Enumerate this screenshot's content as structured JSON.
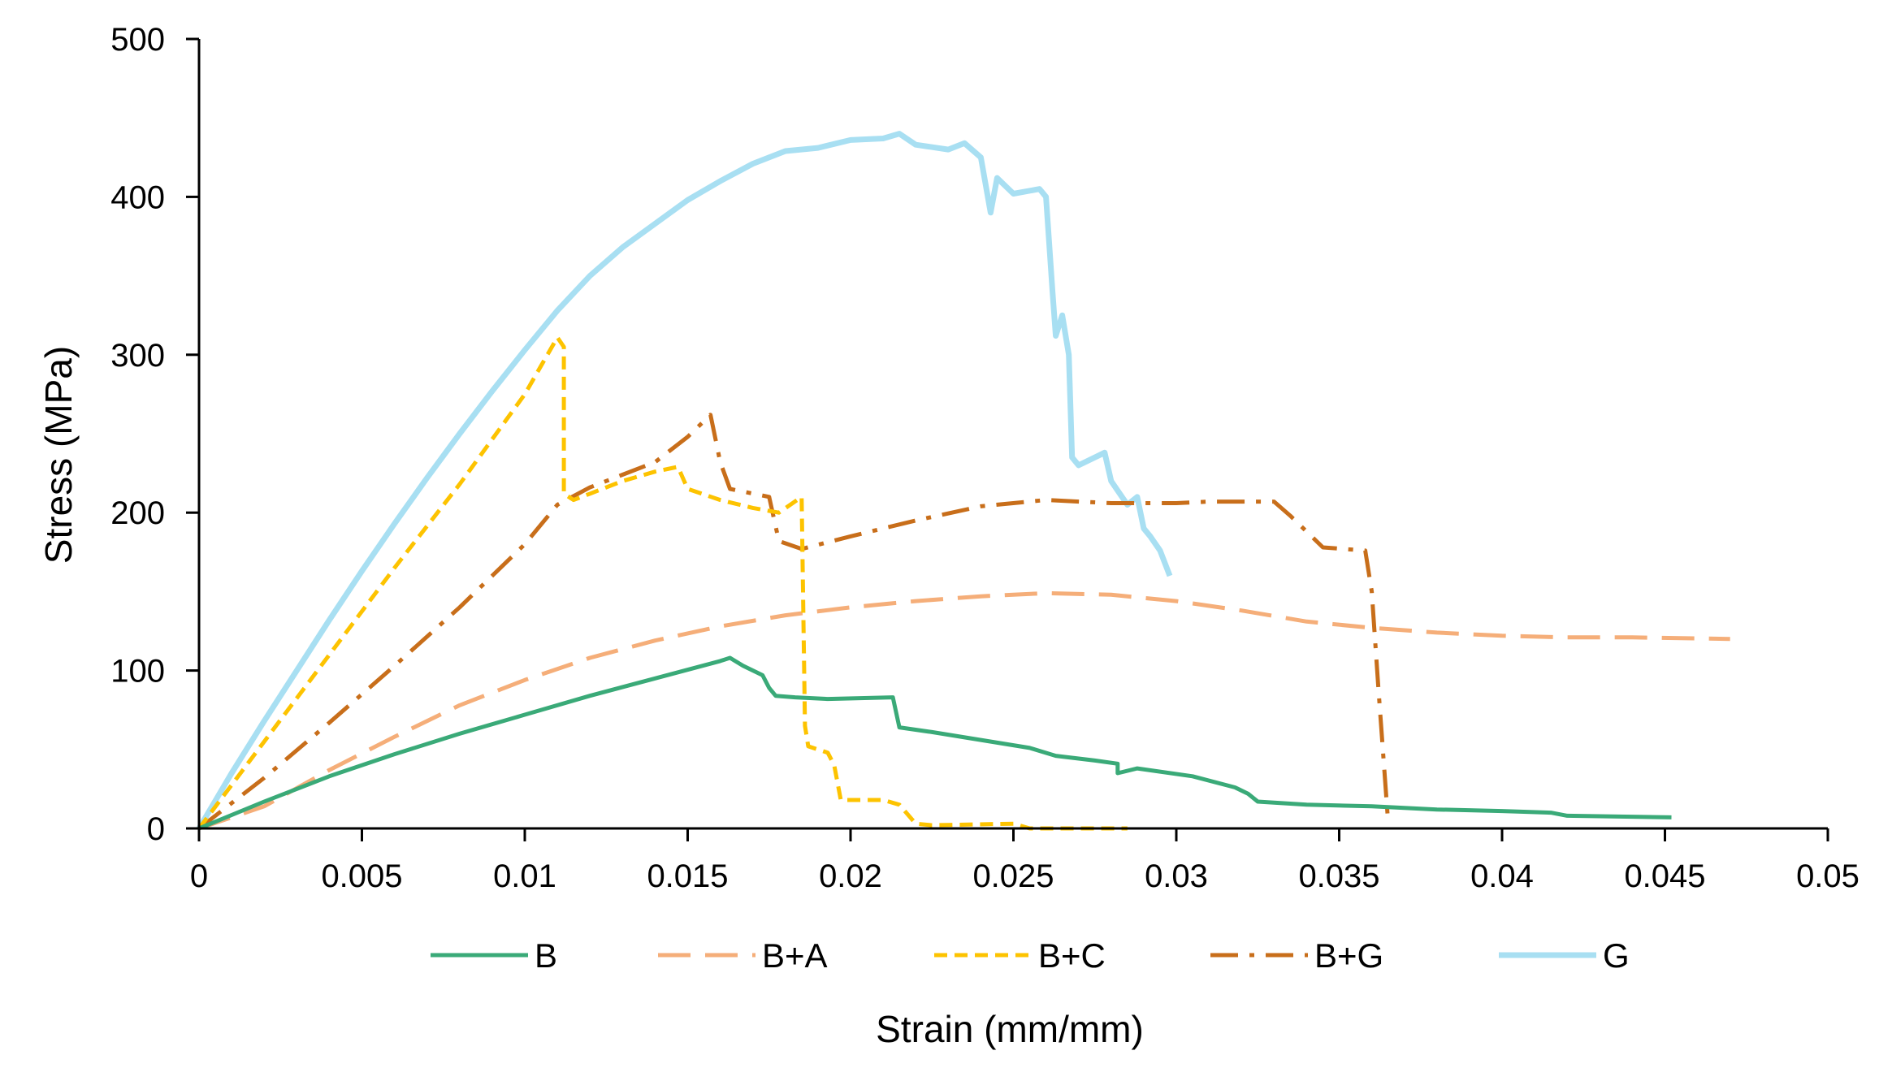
{
  "chart_data": {
    "type": "line",
    "title": "",
    "xlabel": "Strain (mm/mm)",
    "ylabel": "Stress (MPa)",
    "xlim": [
      0,
      0.05
    ],
    "ylim": [
      0,
      500
    ],
    "xticks": [
      0,
      0.005,
      0.01,
      0.015,
      0.02,
      0.025,
      0.03,
      0.035,
      0.04,
      0.045,
      0.05
    ],
    "xtick_labels": [
      "0",
      "0.005",
      "0.01",
      "0.015",
      "0.02",
      "0.025",
      "0.03",
      "0.035",
      "0.04",
      "0.045",
      "0.05"
    ],
    "yticks": [
      0,
      100,
      200,
      300,
      400,
      500
    ],
    "ytick_labels": [
      "0",
      "100",
      "200",
      "300",
      "400",
      "500"
    ],
    "grid": false,
    "legend_position": "bottom",
    "series": [
      {
        "name": "B",
        "color": "#3aaa78",
        "dash": "solid",
        "points": [
          [
            0,
            0
          ],
          [
            0.002,
            17
          ],
          [
            0.004,
            33
          ],
          [
            0.006,
            47
          ],
          [
            0.008,
            60
          ],
          [
            0.01,
            72
          ],
          [
            0.012,
            84
          ],
          [
            0.014,
            95
          ],
          [
            0.016,
            106
          ],
          [
            0.0163,
            108
          ],
          [
            0.0167,
            103
          ],
          [
            0.0173,
            97
          ],
          [
            0.0175,
            89
          ],
          [
            0.0177,
            84
          ],
          [
            0.0183,
            83
          ],
          [
            0.0193,
            82
          ],
          [
            0.0213,
            83
          ],
          [
            0.0215,
            64
          ],
          [
            0.0225,
            61
          ],
          [
            0.024,
            56
          ],
          [
            0.0255,
            51
          ],
          [
            0.0263,
            46
          ],
          [
            0.0275,
            43
          ],
          [
            0.0282,
            41
          ],
          [
            0.0282,
            35
          ],
          [
            0.0288,
            38
          ],
          [
            0.0305,
            33
          ],
          [
            0.0318,
            26
          ],
          [
            0.0322,
            22
          ],
          [
            0.0325,
            17
          ],
          [
            0.034,
            15
          ],
          [
            0.036,
            14
          ],
          [
            0.038,
            12
          ],
          [
            0.04,
            11
          ],
          [
            0.0415,
            10
          ],
          [
            0.042,
            8
          ],
          [
            0.0452,
            7
          ]
        ]
      },
      {
        "name": "B+A",
        "color": "#f5ae79",
        "dash": "long-dash",
        "points": [
          [
            0,
            0
          ],
          [
            0.002,
            14
          ],
          [
            0.004,
            37
          ],
          [
            0.006,
            58
          ],
          [
            0.008,
            78
          ],
          [
            0.01,
            94
          ],
          [
            0.012,
            108
          ],
          [
            0.014,
            119
          ],
          [
            0.016,
            128
          ],
          [
            0.018,
            135
          ],
          [
            0.02,
            140
          ],
          [
            0.022,
            144
          ],
          [
            0.024,
            147
          ],
          [
            0.026,
            149
          ],
          [
            0.028,
            148
          ],
          [
            0.03,
            144
          ],
          [
            0.032,
            138
          ],
          [
            0.034,
            131
          ],
          [
            0.036,
            127
          ],
          [
            0.038,
            124
          ],
          [
            0.04,
            122
          ],
          [
            0.042,
            121
          ],
          [
            0.044,
            121
          ],
          [
            0.047,
            120
          ]
        ]
      },
      {
        "name": "B+C",
        "color": "#fdc300",
        "dash": "short-dash",
        "points": [
          [
            0,
            0
          ],
          [
            0.002,
            55
          ],
          [
            0.004,
            110
          ],
          [
            0.006,
            165
          ],
          [
            0.008,
            218
          ],
          [
            0.01,
            275
          ],
          [
            0.011,
            311
          ],
          [
            0.0112,
            305
          ],
          [
            0.0112,
            212
          ],
          [
            0.0115,
            208
          ],
          [
            0.012,
            212
          ],
          [
            0.013,
            220
          ],
          [
            0.014,
            226
          ],
          [
            0.0147,
            229
          ],
          [
            0.015,
            215
          ],
          [
            0.016,
            208
          ],
          [
            0.017,
            203
          ],
          [
            0.0178,
            200
          ],
          [
            0.0185,
            210
          ],
          [
            0.0186,
            65
          ],
          [
            0.0187,
            52
          ],
          [
            0.0193,
            48
          ],
          [
            0.0195,
            40
          ],
          [
            0.0197,
            18
          ],
          [
            0.021,
            18
          ],
          [
            0.0215,
            15
          ],
          [
            0.022,
            3
          ],
          [
            0.0225,
            2
          ],
          [
            0.025,
            3
          ],
          [
            0.0255,
            0
          ],
          [
            0.0285,
            0
          ]
        ]
      },
      {
        "name": "B+G",
        "color": "#c86e1a",
        "dash": "dash-dot",
        "points": [
          [
            0,
            0
          ],
          [
            0.002,
            32
          ],
          [
            0.004,
            67
          ],
          [
            0.006,
            103
          ],
          [
            0.008,
            140
          ],
          [
            0.01,
            180
          ],
          [
            0.011,
            205
          ],
          [
            0.012,
            216
          ],
          [
            0.013,
            224
          ],
          [
            0.014,
            232
          ],
          [
            0.015,
            248
          ],
          [
            0.0157,
            262
          ],
          [
            0.016,
            232
          ],
          [
            0.0163,
            215
          ],
          [
            0.0175,
            210
          ],
          [
            0.0178,
            182
          ],
          [
            0.0185,
            177
          ],
          [
            0.02,
            185
          ],
          [
            0.022,
            195
          ],
          [
            0.024,
            204
          ],
          [
            0.026,
            208
          ],
          [
            0.028,
            206
          ],
          [
            0.03,
            206
          ],
          [
            0.031,
            207
          ],
          [
            0.033,
            207
          ],
          [
            0.0335,
            198
          ],
          [
            0.0345,
            178
          ],
          [
            0.0358,
            176
          ],
          [
            0.036,
            150
          ],
          [
            0.0362,
            90
          ],
          [
            0.0365,
            5
          ]
        ]
      },
      {
        "name": "G",
        "color": "#a8dff2",
        "dash": "solid",
        "points": [
          [
            0,
            0
          ],
          [
            0.001,
            35
          ],
          [
            0.002,
            68
          ],
          [
            0.003,
            100
          ],
          [
            0.004,
            132
          ],
          [
            0.005,
            163
          ],
          [
            0.006,
            193
          ],
          [
            0.007,
            222
          ],
          [
            0.008,
            250
          ],
          [
            0.009,
            277
          ],
          [
            0.01,
            303
          ],
          [
            0.011,
            328
          ],
          [
            0.012,
            350
          ],
          [
            0.013,
            368
          ],
          [
            0.014,
            383
          ],
          [
            0.015,
            398
          ],
          [
            0.016,
            410
          ],
          [
            0.017,
            421
          ],
          [
            0.018,
            429
          ],
          [
            0.019,
            431
          ],
          [
            0.02,
            436
          ],
          [
            0.021,
            437
          ],
          [
            0.0215,
            440
          ],
          [
            0.022,
            433
          ],
          [
            0.023,
            430
          ],
          [
            0.0235,
            434
          ],
          [
            0.024,
            425
          ],
          [
            0.0243,
            390
          ],
          [
            0.0245,
            412
          ],
          [
            0.025,
            402
          ],
          [
            0.0258,
            405
          ],
          [
            0.026,
            400
          ],
          [
            0.0262,
            340
          ],
          [
            0.0263,
            312
          ],
          [
            0.0265,
            325
          ],
          [
            0.0267,
            300
          ],
          [
            0.0268,
            235
          ],
          [
            0.027,
            230
          ],
          [
            0.0278,
            238
          ],
          [
            0.028,
            220
          ],
          [
            0.0285,
            205
          ],
          [
            0.0288,
            210
          ],
          [
            0.029,
            190
          ],
          [
            0.0292,
            185
          ],
          [
            0.0295,
            176
          ],
          [
            0.0298,
            160
          ]
        ]
      }
    ]
  }
}
